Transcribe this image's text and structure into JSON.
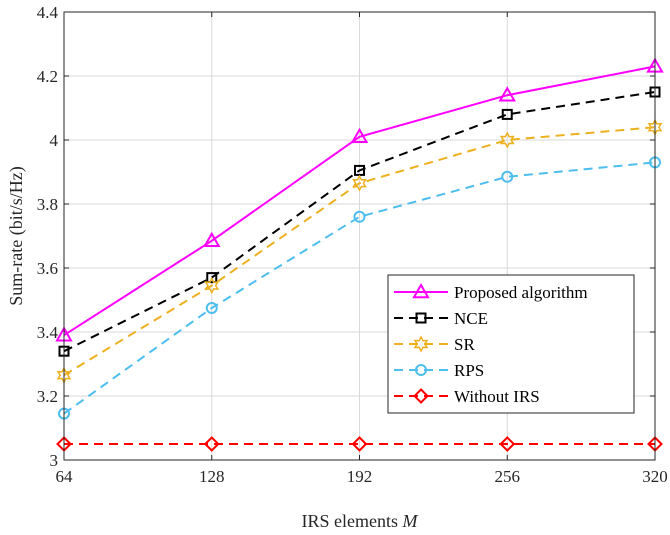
{
  "chart_data": {
    "type": "line",
    "xlabel": "IRS elements",
    "xlabel_var": "M",
    "ylabel": "Sum-rate (bit/s/Hz)",
    "x": [
      64,
      128,
      192,
      256,
      320
    ],
    "xlim": [
      64,
      320
    ],
    "ylim": [
      3,
      4.4
    ],
    "xticks": [
      "64",
      "128",
      "192",
      "256",
      "320"
    ],
    "yticks": [
      "3",
      "3.2",
      "3.4",
      "3.6",
      "3.8",
      "4",
      "4.2",
      "4.4"
    ],
    "grid": true,
    "legend_position": "bottom-right",
    "series": [
      {
        "name": "Proposed algorithm",
        "values": [
          3.39,
          3.685,
          4.01,
          4.14,
          4.23
        ],
        "color": "#ff00ff",
        "dash": "solid",
        "marker": "triangle"
      },
      {
        "name": "NCE",
        "values": [
          3.34,
          3.57,
          3.905,
          4.08,
          4.15
        ],
        "color": "#000000",
        "dash": "dashed",
        "marker": "square"
      },
      {
        "name": "SR",
        "values": [
          3.265,
          3.545,
          3.865,
          4.0,
          4.04
        ],
        "color": "#edb120",
        "dash": "dashed",
        "marker": "hexagram"
      },
      {
        "name": "RPS",
        "values": [
          3.145,
          3.475,
          3.76,
          3.885,
          3.93
        ],
        "color": "#4dbeee",
        "dash": "dashed",
        "marker": "circle"
      },
      {
        "name": "Without IRS",
        "values": [
          3.05,
          3.05,
          3.05,
          3.05,
          3.05
        ],
        "color": "#ff0000",
        "dash": "dashed",
        "marker": "diamond"
      }
    ]
  }
}
